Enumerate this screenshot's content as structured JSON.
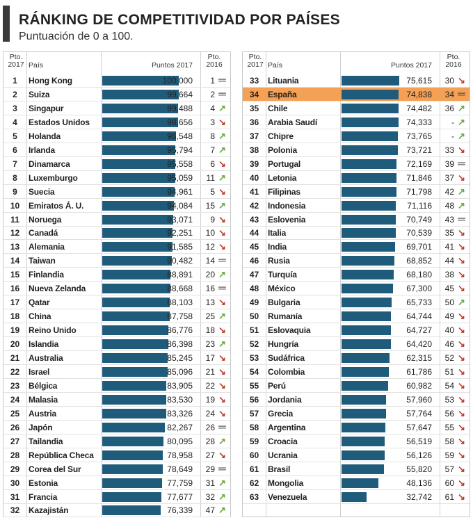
{
  "title": "RÁNKING DE COMPETITIVIDAD POR PAÍSES",
  "subtitle": "Puntuación de 0 a 100.",
  "headers": {
    "pto2017": "Pto. 2017",
    "pais": "País",
    "puntos2017": "Puntos 2017",
    "pto2016": "Pto. 2016"
  },
  "colors": {
    "bar": "#1f5b7a",
    "highlight": "#f4a055",
    "up": "#6aa83a",
    "down": "#c0392b"
  },
  "chart_data": {
    "type": "bar",
    "title": "RÁNKING DE COMPETITIVIDAD POR PAÍSES",
    "subtitle": "Puntuación de 0 a 100.",
    "ylim": [
      0,
      100
    ],
    "highlight": "España",
    "rows": [
      {
        "rank": 1,
        "country": "Hong Kong",
        "points": 100.0,
        "points_label": "100,000",
        "rank2016": "1",
        "trend": "same"
      },
      {
        "rank": 2,
        "country": "Suiza",
        "points": 99.664,
        "points_label": "99,664",
        "rank2016": "2",
        "trend": "same"
      },
      {
        "rank": 3,
        "country": "Singapur",
        "points": 99.488,
        "points_label": "99,488",
        "rank2016": "4",
        "trend": "up"
      },
      {
        "rank": 4,
        "country": "Estados Unidos",
        "points": 98.656,
        "points_label": "98,656",
        "rank2016": "3",
        "trend": "down"
      },
      {
        "rank": 5,
        "country": "Holanda",
        "points": 96.548,
        "points_label": "96,548",
        "rank2016": "8",
        "trend": "up"
      },
      {
        "rank": 6,
        "country": "Irlanda",
        "points": 95.794,
        "points_label": "95,794",
        "rank2016": "7",
        "trend": "up"
      },
      {
        "rank": 7,
        "country": "Dinamarca",
        "points": 95.558,
        "points_label": "95,558",
        "rank2016": "6",
        "trend": "down"
      },
      {
        "rank": 8,
        "country": "Luxemburgo",
        "points": 95.059,
        "points_label": "95,059",
        "rank2016": "11",
        "trend": "up"
      },
      {
        "rank": 9,
        "country": "Suecia",
        "points": 94.961,
        "points_label": "94,961",
        "rank2016": "5",
        "trend": "down"
      },
      {
        "rank": 10,
        "country": "Emiratos Á. U.",
        "points": 94.084,
        "points_label": "94,084",
        "rank2016": "15",
        "trend": "up"
      },
      {
        "rank": 11,
        "country": "Noruega",
        "points": 93.071,
        "points_label": "93,071",
        "rank2016": "9",
        "trend": "down"
      },
      {
        "rank": 12,
        "country": "Canadá",
        "points": 92.251,
        "points_label": "92,251",
        "rank2016": "10",
        "trend": "down"
      },
      {
        "rank": 13,
        "country": "Alemania",
        "points": 91.585,
        "points_label": "91,585",
        "rank2016": "12",
        "trend": "down"
      },
      {
        "rank": 14,
        "country": "Taiwan",
        "points": 90.482,
        "points_label": "90,482",
        "rank2016": "14",
        "trend": "same"
      },
      {
        "rank": 15,
        "country": "Finlandia",
        "points": 88.891,
        "points_label": "88,891",
        "rank2016": "20",
        "trend": "up"
      },
      {
        "rank": 16,
        "country": "Nueva Zelanda",
        "points": 88.668,
        "points_label": "88,668",
        "rank2016": "16",
        "trend": "same"
      },
      {
        "rank": 17,
        "country": "Qatar",
        "points": 88.103,
        "points_label": "88,103",
        "rank2016": "13",
        "trend": "down"
      },
      {
        "rank": 18,
        "country": "China",
        "points": 87.758,
        "points_label": "87,758",
        "rank2016": "25",
        "trend": "up"
      },
      {
        "rank": 19,
        "country": "Reino Unido",
        "points": 86.776,
        "points_label": "86,776",
        "rank2016": "18",
        "trend": "down"
      },
      {
        "rank": 20,
        "country": "Islandia",
        "points": 86.398,
        "points_label": "86,398",
        "rank2016": "23",
        "trend": "up"
      },
      {
        "rank": 21,
        "country": "Australia",
        "points": 85.245,
        "points_label": "85,245",
        "rank2016": "17",
        "trend": "down"
      },
      {
        "rank": 22,
        "country": "Israel",
        "points": 85.096,
        "points_label": "85,096",
        "rank2016": "21",
        "trend": "down"
      },
      {
        "rank": 23,
        "country": "Bélgica",
        "points": 83.905,
        "points_label": "83,905",
        "rank2016": "22",
        "trend": "down"
      },
      {
        "rank": 24,
        "country": "Malasia",
        "points": 83.53,
        "points_label": "83,530",
        "rank2016": "19",
        "trend": "down"
      },
      {
        "rank": 25,
        "country": "Austria",
        "points": 83.326,
        "points_label": "83,326",
        "rank2016": "24",
        "trend": "down"
      },
      {
        "rank": 26,
        "country": "Japón",
        "points": 82.267,
        "points_label": "82,267",
        "rank2016": "26",
        "trend": "same"
      },
      {
        "rank": 27,
        "country": "Tailandia",
        "points": 80.095,
        "points_label": "80,095",
        "rank2016": "28",
        "trend": "up"
      },
      {
        "rank": 28,
        "country": "República Checa",
        "points": 78.958,
        "points_label": "78,958",
        "rank2016": "27",
        "trend": "down"
      },
      {
        "rank": 29,
        "country": "Corea del Sur",
        "points": 78.649,
        "points_label": "78,649",
        "rank2016": "29",
        "trend": "same"
      },
      {
        "rank": 30,
        "country": "Estonia",
        "points": 77.759,
        "points_label": "77,759",
        "rank2016": "31",
        "trend": "up"
      },
      {
        "rank": 31,
        "country": "Francia",
        "points": 77.677,
        "points_label": "77,677",
        "rank2016": "32",
        "trend": "up"
      },
      {
        "rank": 32,
        "country": "Kazajistán",
        "points": 76.339,
        "points_label": "76,339",
        "rank2016": "47",
        "trend": "up"
      },
      {
        "rank": 33,
        "country": "Lituania",
        "points": 75.615,
        "points_label": "75,615",
        "rank2016": "30",
        "trend": "down"
      },
      {
        "rank": 34,
        "country": "España",
        "points": 74.838,
        "points_label": "74,838",
        "rank2016": "34",
        "trend": "same"
      },
      {
        "rank": 35,
        "country": "Chile",
        "points": 74.482,
        "points_label": "74,482",
        "rank2016": "36",
        "trend": "up"
      },
      {
        "rank": 36,
        "country": "Arabia Saudí",
        "points": 74.333,
        "points_label": "74,333",
        "rank2016": "-",
        "trend": "up"
      },
      {
        "rank": 37,
        "country": "Chipre",
        "points": 73.765,
        "points_label": "73,765",
        "rank2016": "-",
        "trend": "up"
      },
      {
        "rank": 38,
        "country": "Polonia",
        "points": 73.721,
        "points_label": "73,721",
        "rank2016": "33",
        "trend": "down"
      },
      {
        "rank": 39,
        "country": "Portugal",
        "points": 72.169,
        "points_label": "72,169",
        "rank2016": "39",
        "trend": "same"
      },
      {
        "rank": 40,
        "country": "Letonia",
        "points": 71.846,
        "points_label": "71,846",
        "rank2016": "37",
        "trend": "down"
      },
      {
        "rank": 41,
        "country": "Filipinas",
        "points": 71.798,
        "points_label": "71,798",
        "rank2016": "42",
        "trend": "up"
      },
      {
        "rank": 42,
        "country": "Indonesia",
        "points": 71.116,
        "points_label": "71,116",
        "rank2016": "48",
        "trend": "up"
      },
      {
        "rank": 43,
        "country": "Eslovenia",
        "points": 70.749,
        "points_label": "70,749",
        "rank2016": "43",
        "trend": "same"
      },
      {
        "rank": 44,
        "country": "Italia",
        "points": 70.539,
        "points_label": "70,539",
        "rank2016": "35",
        "trend": "down"
      },
      {
        "rank": 45,
        "country": "India",
        "points": 69.701,
        "points_label": "69,701",
        "rank2016": "41",
        "trend": "down"
      },
      {
        "rank": 46,
        "country": "Rusia",
        "points": 68.852,
        "points_label": "68,852",
        "rank2016": "44",
        "trend": "down"
      },
      {
        "rank": 47,
        "country": "Turquía",
        "points": 68.18,
        "points_label": "68,180",
        "rank2016": "38",
        "trend": "down"
      },
      {
        "rank": 48,
        "country": "México",
        "points": 67.3,
        "points_label": "67,300",
        "rank2016": "45",
        "trend": "down"
      },
      {
        "rank": 49,
        "country": "Bulgaria",
        "points": 65.733,
        "points_label": "65,733",
        "rank2016": "50",
        "trend": "up"
      },
      {
        "rank": 50,
        "country": "Rumanía",
        "points": 64.744,
        "points_label": "64,744",
        "rank2016": "49",
        "trend": "down"
      },
      {
        "rank": 51,
        "country": "Eslovaquia",
        "points": 64.727,
        "points_label": "64,727",
        "rank2016": "40",
        "trend": "down"
      },
      {
        "rank": 52,
        "country": "Hungría",
        "points": 64.42,
        "points_label": "64,420",
        "rank2016": "46",
        "trend": "down"
      },
      {
        "rank": 53,
        "country": "Sudáfrica",
        "points": 62.315,
        "points_label": "62,315",
        "rank2016": "52",
        "trend": "down"
      },
      {
        "rank": 54,
        "country": "Colombia",
        "points": 61.786,
        "points_label": "61,786",
        "rank2016": "51",
        "trend": "down"
      },
      {
        "rank": 55,
        "country": "Perú",
        "points": 60.982,
        "points_label": "60,982",
        "rank2016": "54",
        "trend": "down"
      },
      {
        "rank": 56,
        "country": "Jordania",
        "points": 57.96,
        "points_label": "57,960",
        "rank2016": "53",
        "trend": "down"
      },
      {
        "rank": 57,
        "country": "Grecia",
        "points": 57.764,
        "points_label": "57,764",
        "rank2016": "56",
        "trend": "down"
      },
      {
        "rank": 58,
        "country": "Argentina",
        "points": 57.647,
        "points_label": "57,647",
        "rank2016": "55",
        "trend": "down"
      },
      {
        "rank": 59,
        "country": "Croacia",
        "points": 56.519,
        "points_label": "56,519",
        "rank2016": "58",
        "trend": "down"
      },
      {
        "rank": 60,
        "country": "Ucrania",
        "points": 56.126,
        "points_label": "56,126",
        "rank2016": "59",
        "trend": "down"
      },
      {
        "rank": 61,
        "country": "Brasil",
        "points": 55.82,
        "points_label": "55,820",
        "rank2016": "57",
        "trend": "down"
      },
      {
        "rank": 62,
        "country": "Mongolia",
        "points": 48.136,
        "points_label": "48,136",
        "rank2016": "60",
        "trend": "down"
      },
      {
        "rank": 63,
        "country": "Venezuela",
        "points": 32.742,
        "points_label": "32,742",
        "rank2016": "61",
        "trend": "down"
      }
    ]
  }
}
